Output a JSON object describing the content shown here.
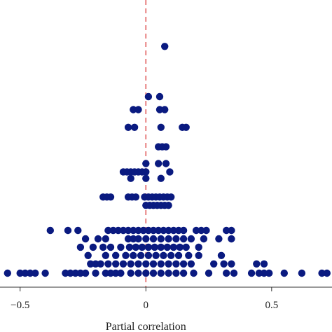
{
  "chart_data": {
    "type": "scatter",
    "xlabel": "Partial correlation",
    "ylabel": "",
    "xlim": [
      -0.58,
      0.74
    ],
    "ylim": [
      0,
      30
    ],
    "x_ticks": [
      {
        "value": -0.5,
        "label": "−0.5"
      },
      {
        "value": 0,
        "label": "0"
      },
      {
        "value": 0.5,
        "label": "0.5"
      }
    ],
    "reference_line": {
      "x": 0,
      "color": "#e05555",
      "style": "dashed"
    },
    "grid": false,
    "point_color": "#0a1a80",
    "series": [
      {
        "points": [
          {
            "x": 0.075,
            "y": 25
          },
          {
            "x": 0.01,
            "y": 19.6
          },
          {
            "x": 0.055,
            "y": 19.6
          },
          {
            "x": -0.05,
            "y": 18.2
          },
          {
            "x": -0.03,
            "y": 18.2
          },
          {
            "x": 0.055,
            "y": 18.2
          },
          {
            "x": 0.075,
            "y": 18.2
          },
          {
            "x": -0.07,
            "y": 16.3
          },
          {
            "x": -0.045,
            "y": 16.3
          },
          {
            "x": 0.06,
            "y": 16.3
          },
          {
            "x": 0.145,
            "y": 16.3
          },
          {
            "x": 0.16,
            "y": 16.3
          },
          {
            "x": 0.05,
            "y": 14.2
          },
          {
            "x": 0.065,
            "y": 14.2
          },
          {
            "x": 0.08,
            "y": 14.2
          },
          {
            "x": 0.0,
            "y": 12.4
          },
          {
            "x": 0.05,
            "y": 12.4
          },
          {
            "x": 0.08,
            "y": 12.4
          },
          {
            "x": -0.09,
            "y": 11.5
          },
          {
            "x": -0.075,
            "y": 11.5
          },
          {
            "x": -0.06,
            "y": 11.5
          },
          {
            "x": -0.045,
            "y": 11.5
          },
          {
            "x": -0.03,
            "y": 11.5
          },
          {
            "x": -0.015,
            "y": 11.5
          },
          {
            "x": 0.0,
            "y": 11.5
          },
          {
            "x": 0.095,
            "y": 11.5
          },
          {
            "x": -0.06,
            "y": 10.8
          },
          {
            "x": 0.0,
            "y": 10.8
          },
          {
            "x": 0.06,
            "y": 10.8
          },
          {
            "x": -0.17,
            "y": 8.8
          },
          {
            "x": -0.155,
            "y": 8.8
          },
          {
            "x": -0.14,
            "y": 8.8
          },
          {
            "x": -0.07,
            "y": 8.8
          },
          {
            "x": -0.055,
            "y": 8.8
          },
          {
            "x": -0.04,
            "y": 8.8
          },
          {
            "x": -0.005,
            "y": 8.8
          },
          {
            "x": 0.01,
            "y": 8.8
          },
          {
            "x": 0.025,
            "y": 8.8
          },
          {
            "x": 0.04,
            "y": 8.8
          },
          {
            "x": 0.055,
            "y": 8.8
          },
          {
            "x": 0.07,
            "y": 8.8
          },
          {
            "x": 0.085,
            "y": 8.8
          },
          {
            "x": 0.1,
            "y": 8.8
          },
          {
            "x": 0.0,
            "y": 7.9
          },
          {
            "x": 0.015,
            "y": 7.9
          },
          {
            "x": 0.03,
            "y": 7.9
          },
          {
            "x": 0.045,
            "y": 7.9
          },
          {
            "x": 0.06,
            "y": 7.9
          },
          {
            "x": 0.075,
            "y": 7.9
          },
          {
            "x": 0.09,
            "y": 7.9
          },
          {
            "x": -0.38,
            "y": 5.2
          },
          {
            "x": -0.31,
            "y": 5.2
          },
          {
            "x": -0.27,
            "y": 5.2
          },
          {
            "x": -0.15,
            "y": 5.2
          },
          {
            "x": -0.13,
            "y": 5.2
          },
          {
            "x": -0.11,
            "y": 5.2
          },
          {
            "x": -0.09,
            "y": 5.2
          },
          {
            "x": -0.07,
            "y": 5.2
          },
          {
            "x": -0.05,
            "y": 5.2
          },
          {
            "x": -0.03,
            "y": 5.2
          },
          {
            "x": -0.01,
            "y": 5.2
          },
          {
            "x": 0.01,
            "y": 5.2
          },
          {
            "x": 0.03,
            "y": 5.2
          },
          {
            "x": 0.05,
            "y": 5.2
          },
          {
            "x": 0.07,
            "y": 5.2
          },
          {
            "x": 0.09,
            "y": 5.2
          },
          {
            "x": 0.11,
            "y": 5.2
          },
          {
            "x": 0.13,
            "y": 5.2
          },
          {
            "x": 0.15,
            "y": 5.2
          },
          {
            "x": 0.2,
            "y": 5.2
          },
          {
            "x": 0.22,
            "y": 5.2
          },
          {
            "x": 0.24,
            "y": 5.2
          },
          {
            "x": 0.32,
            "y": 5.2
          },
          {
            "x": 0.34,
            "y": 5.2
          },
          {
            "x": -0.24,
            "y": 4.3
          },
          {
            "x": -0.19,
            "y": 4.3
          },
          {
            "x": -0.16,
            "y": 4.3
          },
          {
            "x": -0.07,
            "y": 4.3
          },
          {
            "x": -0.05,
            "y": 4.3
          },
          {
            "x": -0.03,
            "y": 4.3
          },
          {
            "x": 0.0,
            "y": 4.3
          },
          {
            "x": 0.03,
            "y": 4.3
          },
          {
            "x": 0.06,
            "y": 4.3
          },
          {
            "x": 0.09,
            "y": 4.3
          },
          {
            "x": 0.12,
            "y": 4.3
          },
          {
            "x": 0.15,
            "y": 4.3
          },
          {
            "x": 0.18,
            "y": 4.3
          },
          {
            "x": 0.23,
            "y": 4.3
          },
          {
            "x": 0.29,
            "y": 4.3
          },
          {
            "x": 0.34,
            "y": 4.3
          },
          {
            "x": -0.26,
            "y": 3.4
          },
          {
            "x": -0.21,
            "y": 3.4
          },
          {
            "x": -0.17,
            "y": 3.4
          },
          {
            "x": -0.14,
            "y": 3.4
          },
          {
            "x": -0.1,
            "y": 3.4
          },
          {
            "x": -0.065,
            "y": 3.4
          },
          {
            "x": -0.04,
            "y": 3.4
          },
          {
            "x": -0.015,
            "y": 3.4
          },
          {
            "x": 0.01,
            "y": 3.4
          },
          {
            "x": 0.035,
            "y": 3.4
          },
          {
            "x": 0.06,
            "y": 3.4
          },
          {
            "x": 0.085,
            "y": 3.4
          },
          {
            "x": 0.11,
            "y": 3.4
          },
          {
            "x": 0.135,
            "y": 3.4
          },
          {
            "x": 0.16,
            "y": 3.4
          },
          {
            "x": 0.21,
            "y": 3.4
          },
          {
            "x": -0.23,
            "y": 2.5
          },
          {
            "x": -0.16,
            "y": 2.5
          },
          {
            "x": -0.12,
            "y": 2.5
          },
          {
            "x": -0.08,
            "y": 2.5
          },
          {
            "x": -0.05,
            "y": 2.5
          },
          {
            "x": -0.02,
            "y": 2.5
          },
          {
            "x": 0.01,
            "y": 2.5
          },
          {
            "x": 0.04,
            "y": 2.5
          },
          {
            "x": 0.07,
            "y": 2.5
          },
          {
            "x": 0.1,
            "y": 2.5
          },
          {
            "x": 0.13,
            "y": 2.5
          },
          {
            "x": 0.17,
            "y": 2.5
          },
          {
            "x": 0.21,
            "y": 2.5
          },
          {
            "x": 0.3,
            "y": 2.5
          },
          {
            "x": -0.22,
            "y": 1.6
          },
          {
            "x": -0.2,
            "y": 1.6
          },
          {
            "x": -0.18,
            "y": 1.6
          },
          {
            "x": -0.15,
            "y": 1.6
          },
          {
            "x": -0.12,
            "y": 1.6
          },
          {
            "x": -0.09,
            "y": 1.6
          },
          {
            "x": -0.06,
            "y": 1.6
          },
          {
            "x": -0.03,
            "y": 1.6
          },
          {
            "x": 0.0,
            "y": 1.6
          },
          {
            "x": 0.03,
            "y": 1.6
          },
          {
            "x": 0.06,
            "y": 1.6
          },
          {
            "x": 0.09,
            "y": 1.6
          },
          {
            "x": 0.12,
            "y": 1.6
          },
          {
            "x": 0.15,
            "y": 1.6
          },
          {
            "x": 0.18,
            "y": 1.6
          },
          {
            "x": 0.27,
            "y": 1.6
          },
          {
            "x": 0.31,
            "y": 1.6
          },
          {
            "x": 0.34,
            "y": 1.6
          },
          {
            "x": 0.44,
            "y": 1.6
          },
          {
            "x": 0.47,
            "y": 1.6
          },
          {
            "x": -0.55,
            "y": 0.6
          },
          {
            "x": -0.5,
            "y": 0.6
          },
          {
            "x": -0.48,
            "y": 0.6
          },
          {
            "x": -0.46,
            "y": 0.6
          },
          {
            "x": -0.44,
            "y": 0.6
          },
          {
            "x": -0.4,
            "y": 0.6
          },
          {
            "x": -0.32,
            "y": 0.6
          },
          {
            "x": -0.3,
            "y": 0.6
          },
          {
            "x": -0.28,
            "y": 0.6
          },
          {
            "x": -0.26,
            "y": 0.6
          },
          {
            "x": -0.24,
            "y": 0.6
          },
          {
            "x": -0.2,
            "y": 0.6
          },
          {
            "x": -0.16,
            "y": 0.6
          },
          {
            "x": -0.14,
            "y": 0.6
          },
          {
            "x": -0.12,
            "y": 0.6
          },
          {
            "x": -0.1,
            "y": 0.6
          },
          {
            "x": -0.06,
            "y": 0.6
          },
          {
            "x": -0.03,
            "y": 0.6
          },
          {
            "x": 0.0,
            "y": 0.6
          },
          {
            "x": 0.03,
            "y": 0.6
          },
          {
            "x": 0.06,
            "y": 0.6
          },
          {
            "x": 0.09,
            "y": 0.6
          },
          {
            "x": 0.12,
            "y": 0.6
          },
          {
            "x": 0.15,
            "y": 0.6
          },
          {
            "x": 0.19,
            "y": 0.6
          },
          {
            "x": 0.25,
            "y": 0.6
          },
          {
            "x": 0.32,
            "y": 0.6
          },
          {
            "x": 0.35,
            "y": 0.6
          },
          {
            "x": 0.42,
            "y": 0.6
          },
          {
            "x": 0.45,
            "y": 0.6
          },
          {
            "x": 0.47,
            "y": 0.6
          },
          {
            "x": 0.49,
            "y": 0.6
          },
          {
            "x": 0.55,
            "y": 0.6
          },
          {
            "x": 0.62,
            "y": 0.6
          },
          {
            "x": 0.7,
            "y": 0.6
          },
          {
            "x": 0.72,
            "y": 0.6
          }
        ]
      }
    ]
  }
}
